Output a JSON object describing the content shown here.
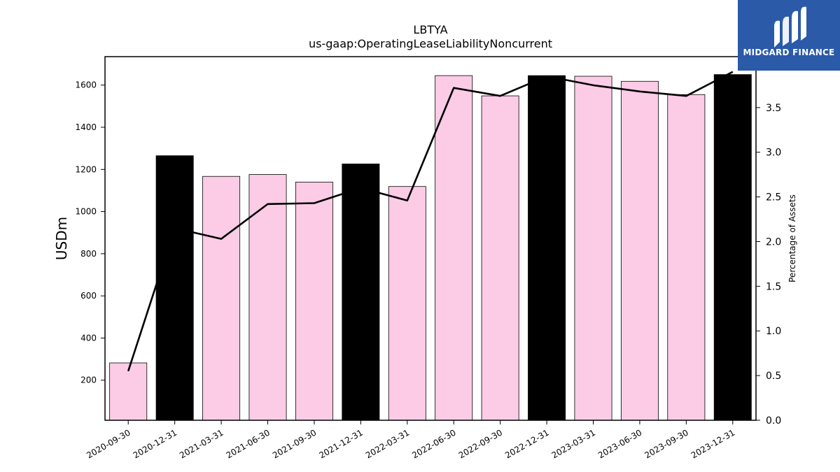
{
  "chart_data": {
    "type": "bar",
    "title": "LBTYA",
    "subtitle": "us-gaap:OperatingLeaseLiabilityNoncurrent",
    "categories": [
      "2020-09-30",
      "2020-12-31",
      "2021-03-31",
      "2021-06-30",
      "2021-09-30",
      "2021-12-31",
      "2022-03-31",
      "2022-06-30",
      "2022-09-30",
      "2022-12-31",
      "2023-03-31",
      "2023-06-30",
      "2023-09-30",
      "2023-12-31"
    ],
    "series": [
      {
        "type": "bar",
        "axis": "left",
        "values": [
          282,
          1265,
          1167,
          1176,
          1140,
          1226,
          1119,
          1645,
          1549,
          1645,
          1642,
          1618,
          1555,
          1650
        ],
        "colors": [
          "#fccce6",
          "#000000",
          "#fccce6",
          "#fccce6",
          "#fccce6",
          "#000000",
          "#fccce6",
          "#fccce6",
          "#fccce6",
          "#000000",
          "#fccce6",
          "#fccce6",
          "#fccce6",
          "#000000"
        ]
      },
      {
        "type": "line",
        "axis": "right",
        "values": [
          0.55,
          2.15,
          2.03,
          2.42,
          2.43,
          2.6,
          2.46,
          3.72,
          3.63,
          3.85,
          3.75,
          3.68,
          3.63,
          3.9
        ],
        "color": "#000000"
      }
    ],
    "ylabel": "USDm",
    "ylabel_right": "Percentage of Assets",
    "ylim": [
      10,
      1735
    ],
    "yticks": [
      200,
      400,
      600,
      800,
      1000,
      1200,
      1400,
      1600
    ],
    "ylim_right": [
      0,
      4.07
    ],
    "yticks_right": [
      "0.0",
      "0.5",
      "1.0",
      "1.5",
      "2.0",
      "2.5",
      "3.0",
      "3.5"
    ],
    "grid": false,
    "legend": "none"
  },
  "logo": {
    "text": "MIDGARD FINANCE",
    "background": "#2a5aa8"
  }
}
